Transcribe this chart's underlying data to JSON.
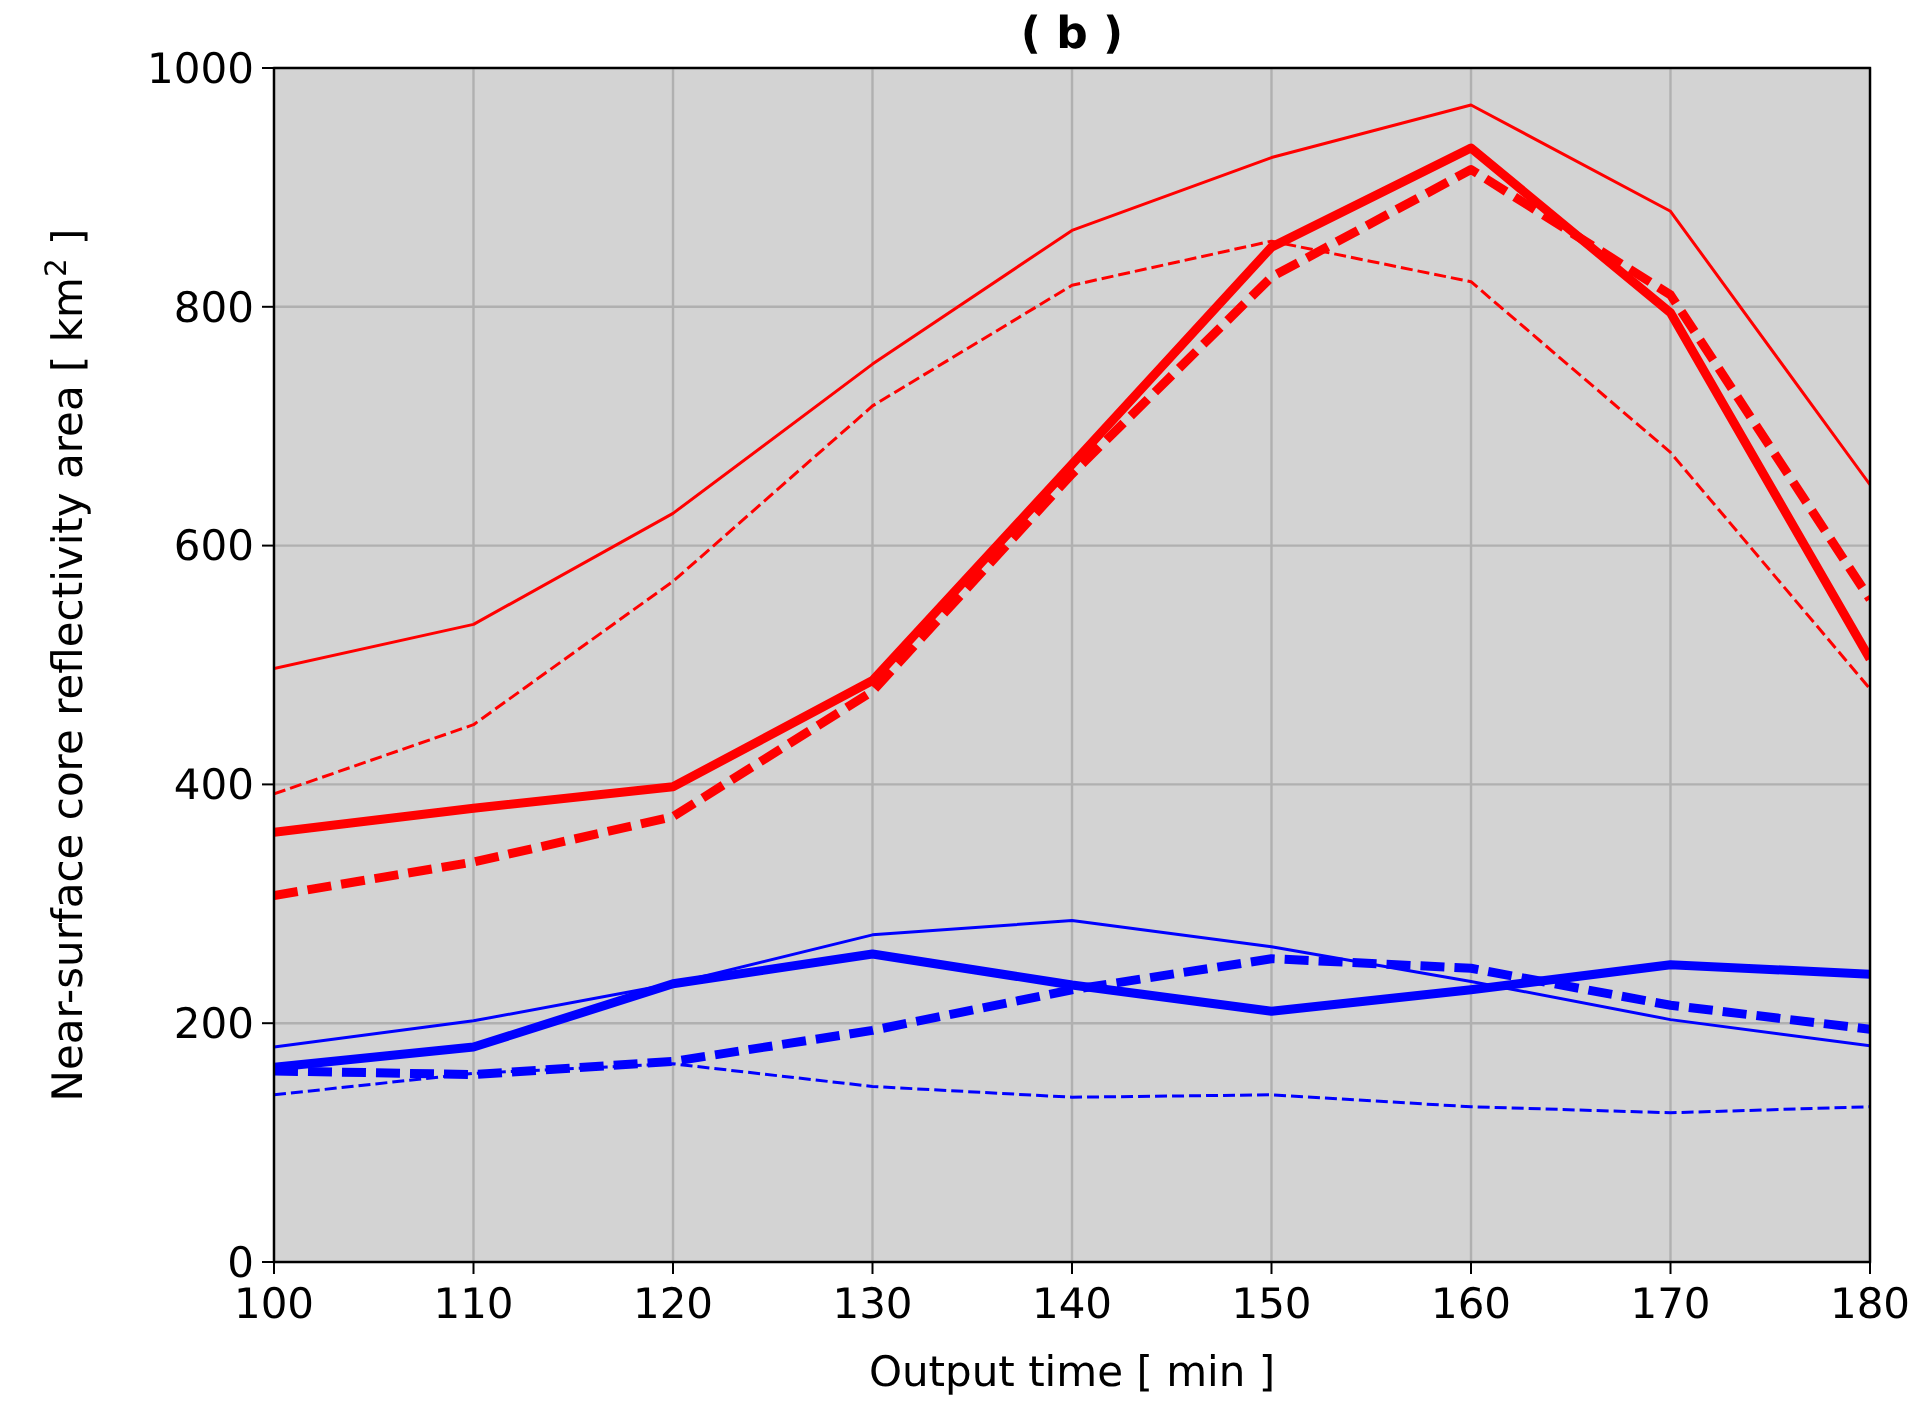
{
  "chart_data": {
    "type": "line",
    "title": "( b )",
    "xlabel": "Output time [ min ]",
    "ylabel": "Near-surface core reflectivity area [ km$^{2}$ ]",
    "x": [
      100,
      110,
      120,
      130,
      140,
      150,
      160,
      170,
      180
    ],
    "xlim": [
      100,
      180
    ],
    "xticks": [
      100,
      110,
      120,
      130,
      140,
      150,
      160,
      170,
      180
    ],
    "ylim": [
      0,
      1000
    ],
    "yticks": [
      0,
      200,
      400,
      600,
      800,
      1000
    ],
    "grid": true,
    "marker": "none",
    "series": [
      {
        "color": "#ff0000",
        "line_style": "solid",
        "values": [
          497,
          534,
          627,
          752,
          864,
          925,
          969,
          880,
          651
        ]
      },
      {
        "color": "#ff0000",
        "line_style": "dashed",
        "values": [
          392,
          450,
          570,
          717,
          818,
          855,
          821,
          678,
          480
        ]
      },
      {
        "color": "#ff0000",
        "line_style": "solid",
        "values": [
          360,
          380,
          398,
          487,
          668,
          850,
          933,
          795,
          505
        ]
      },
      {
        "color": "#ff0000",
        "line_style": "dashed",
        "values": [
          307,
          335,
          373,
          478,
          660,
          825,
          915,
          810,
          555
        ]
      },
      {
        "color": "#0000ff",
        "line_style": "solid",
        "values": [
          180,
          202,
          233,
          274,
          286,
          264,
          235,
          203,
          181
        ]
      },
      {
        "color": "#0000ff",
        "line_style": "dashed",
        "values": [
          140,
          158,
          166,
          147,
          138,
          140,
          130,
          125,
          130
        ]
      },
      {
        "color": "#0000ff",
        "line_style": "solid",
        "values": [
          163,
          180,
          233,
          258,
          232,
          210,
          228,
          249,
          241
        ]
      },
      {
        "color": "#0000ff",
        "line_style": "dashed",
        "values": [
          160,
          157,
          168,
          194,
          228,
          254,
          246,
          215,
          195
        ]
      }
    ]
  }
}
